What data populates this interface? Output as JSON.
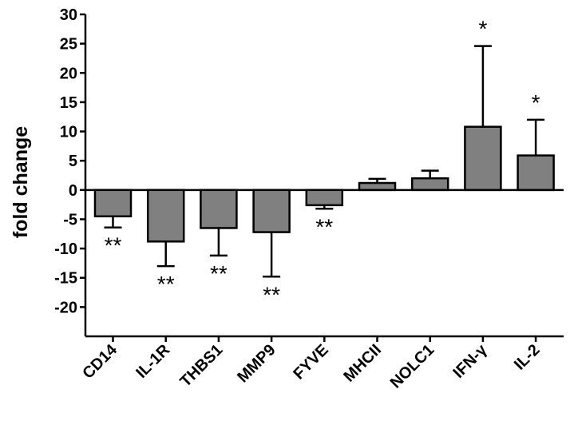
{
  "chart_data": {
    "type": "bar",
    "title": "",
    "xlabel": "",
    "ylabel": "fold change",
    "ylim": [
      -25,
      30
    ],
    "yticks": [
      30,
      25,
      20,
      15,
      10,
      5,
      0,
      -5,
      -10,
      -15,
      -20
    ],
    "grid": false,
    "categories": [
      "CD14",
      "IL-1R",
      "THBS1",
      "MMP9",
      "FYVE",
      "MHCII",
      "NOLC1",
      "IFN-γ",
      "IL-2"
    ],
    "values": [
      -4.5,
      -8.8,
      -6.5,
      -7.2,
      -2.6,
      1.2,
      2.0,
      10.8,
      5.9
    ],
    "error": [
      1.9,
      4.2,
      4.7,
      7.6,
      0.6,
      0.7,
      1.3,
      13.8,
      6.1
    ],
    "significance": [
      "**",
      "**",
      "**",
      "**",
      "**",
      "",
      "",
      "*",
      "*"
    ],
    "bar_color": "#808080"
  }
}
